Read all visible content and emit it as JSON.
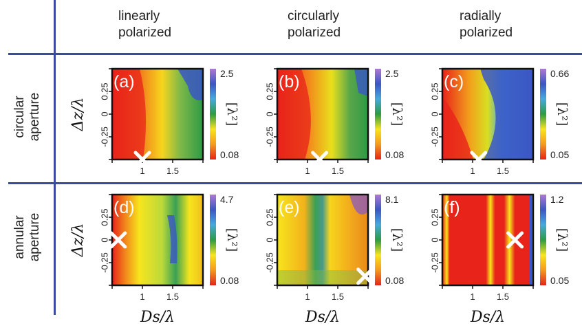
{
  "column_headers": [
    {
      "line1": "linearly",
      "line2": "polarized"
    },
    {
      "line1": "circularly",
      "line2": "polarized"
    },
    {
      "line1": "radially",
      "line2": "polarized"
    }
  ],
  "row_headers": [
    {
      "line1": "circular",
      "line2": "aperture"
    },
    {
      "line1": "annular",
      "line2": "aperture"
    }
  ],
  "axes": {
    "ylabel": "Δz/λ",
    "xlabel": "Ds/λ",
    "colorbar_label": "[λ²]"
  },
  "colors": {
    "divider": "#3a4a9e",
    "marker": "#ffffff",
    "colormap": [
      "#e8231a",
      "#f59a1c",
      "#f7e51d",
      "#2e9a45",
      "#4aa8d8",
      "#3b57c4",
      "#b07ad0"
    ]
  },
  "chart_data": [
    {
      "type": "heatmap",
      "panel_label": "(a)",
      "colorbar": {
        "min": "0.08",
        "max": "2.5"
      },
      "xticks": [
        "1",
        "1.5"
      ],
      "yticks": [
        "0.25",
        "0",
        "-0.25"
      ],
      "marker": {
        "x": 1.0,
        "y": -0.5
      }
    },
    {
      "type": "heatmap",
      "panel_label": "(b)",
      "colorbar": {
        "min": "0.08",
        "max": "2.5"
      },
      "xticks": [
        "1",
        "1.5"
      ],
      "yticks": [
        "0.25",
        "0",
        "-0.25"
      ],
      "marker": {
        "x": 1.2,
        "y": -0.5
      }
    },
    {
      "type": "heatmap",
      "panel_label": "(c)",
      "colorbar": {
        "min": "0.05",
        "max": "0.66"
      },
      "xticks": [
        "1",
        "1.5"
      ],
      "yticks": [
        "0.25",
        "0",
        "-0.25"
      ],
      "marker": {
        "x": 1.1,
        "y": -0.5
      }
    },
    {
      "type": "heatmap",
      "panel_label": "(d)",
      "colorbar": {
        "min": "0.08",
        "max": "4.7"
      },
      "xticks": [
        "1",
        "1.5"
      ],
      "yticks": [
        "0.25",
        "0",
        "-0.25"
      ],
      "marker": {
        "x": 0.6,
        "y": 0.0
      }
    },
    {
      "type": "heatmap",
      "panel_label": "(e)",
      "colorbar": {
        "min": "0.08",
        "max": "8.1"
      },
      "xticks": [
        "1",
        "1.5"
      ],
      "yticks": [
        "0.25",
        "0",
        "-0.25"
      ],
      "marker": {
        "x": 1.95,
        "y": -0.4
      }
    },
    {
      "type": "heatmap",
      "panel_label": "(f)",
      "colorbar": {
        "min": "0.05",
        "max": "1.2"
      },
      "xticks": [
        "1",
        "1.5"
      ],
      "yticks": [
        "0.25",
        "0",
        "-0.25"
      ],
      "marker": {
        "x": 1.7,
        "y": 0.0
      }
    }
  ]
}
